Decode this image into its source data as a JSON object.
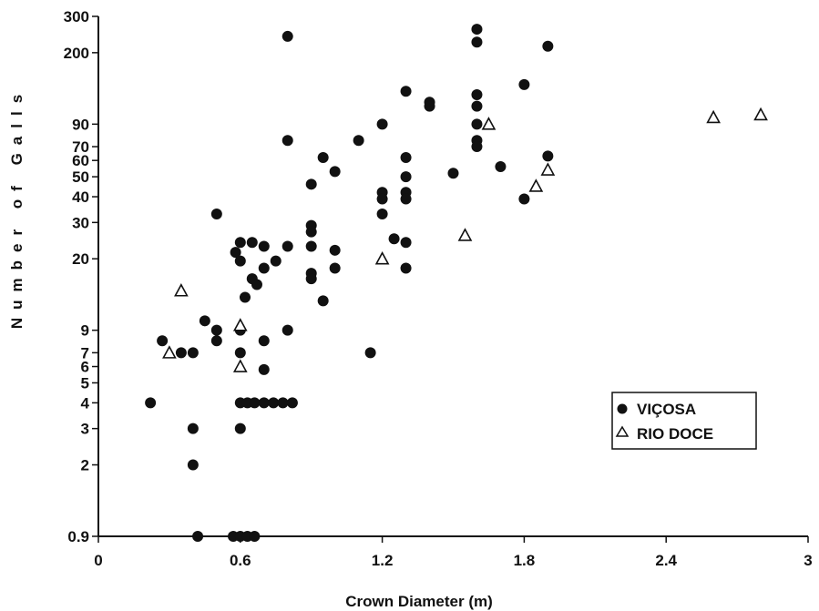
{
  "chart_data": {
    "type": "scatter",
    "title": "",
    "xlabel": "Crown Diameter (m)",
    "ylabel": "Number of Galls",
    "xlim": [
      0,
      3
    ],
    "ylim": [
      0.9,
      300
    ],
    "yscale": "log",
    "xticks": [
      "0",
      "0.6",
      "1.2",
      "1.8",
      "2.4",
      "3"
    ],
    "xtick_values": [
      0,
      0.6,
      1.2,
      1.8,
      2.4,
      3
    ],
    "yticks": [
      "0.9",
      "2",
      "3",
      "4",
      "5",
      "6",
      "7",
      "9",
      "20",
      "30",
      "40",
      "50",
      "60",
      "70",
      "90",
      "200",
      "300"
    ],
    "ytick_values": [
      0.9,
      2,
      3,
      4,
      5,
      6,
      7,
      9,
      20,
      30,
      40,
      50,
      60,
      70,
      90,
      200,
      300
    ],
    "grid": false,
    "legend_position": "bottom-right",
    "series": [
      {
        "name": "VIÇOSA",
        "marker": "filled-circle",
        "color": "#111111",
        "points": [
          [
            0.8,
            240
          ],
          [
            1.6,
            260
          ],
          [
            1.6,
            225
          ],
          [
            1.9,
            215
          ],
          [
            1.3,
            130
          ],
          [
            1.4,
            115
          ],
          [
            1.4,
            110
          ],
          [
            1.6,
            125
          ],
          [
            1.6,
            110
          ],
          [
            1.8,
            140
          ],
          [
            1.2,
            90
          ],
          [
            1.6,
            90
          ],
          [
            0.8,
            75
          ],
          [
            1.1,
            75
          ],
          [
            1.6,
            75
          ],
          [
            1.6,
            70
          ],
          [
            0.95,
            62
          ],
          [
            1.3,
            62
          ],
          [
            1.9,
            63
          ],
          [
            1.7,
            56
          ],
          [
            1.0,
            53
          ],
          [
            1.3,
            50
          ],
          [
            1.5,
            52
          ],
          [
            0.9,
            46
          ],
          [
            1.2,
            42
          ],
          [
            1.2,
            39
          ],
          [
            1.3,
            42
          ],
          [
            1.3,
            39
          ],
          [
            1.8,
            39
          ],
          [
            0.5,
            33
          ],
          [
            1.2,
            33
          ],
          [
            0.9,
            29
          ],
          [
            0.9,
            27
          ],
          [
            1.25,
            25
          ],
          [
            1.3,
            24
          ],
          [
            0.6,
            24
          ],
          [
            0.65,
            24
          ],
          [
            0.7,
            23
          ],
          [
            0.8,
            23
          ],
          [
            0.9,
            23
          ],
          [
            1.0,
            22
          ],
          [
            0.58,
            21.5
          ],
          [
            0.6,
            19.5
          ],
          [
            0.75,
            19.5
          ],
          [
            0.7,
            18
          ],
          [
            1.0,
            18
          ],
          [
            1.3,
            18
          ],
          [
            0.9,
            17
          ],
          [
            0.9,
            16
          ],
          [
            0.65,
            16
          ],
          [
            0.67,
            15
          ],
          [
            0.62,
            13
          ],
          [
            0.95,
            12.5
          ],
          [
            0.45,
            10
          ],
          [
            0.5,
            9
          ],
          [
            0.6,
            9
          ],
          [
            0.8,
            9
          ],
          [
            0.27,
            8
          ],
          [
            0.5,
            8
          ],
          [
            0.7,
            8
          ],
          [
            0.35,
            7
          ],
          [
            0.4,
            7
          ],
          [
            0.6,
            7
          ],
          [
            1.15,
            7
          ],
          [
            0.7,
            5.8
          ],
          [
            0.22,
            4
          ],
          [
            0.6,
            4
          ],
          [
            0.63,
            4
          ],
          [
            0.66,
            4
          ],
          [
            0.7,
            4
          ],
          [
            0.74,
            4
          ],
          [
            0.78,
            4
          ],
          [
            0.82,
            4
          ],
          [
            0.4,
            3
          ],
          [
            0.6,
            3
          ],
          [
            0.4,
            2
          ],
          [
            0.42,
            0.9
          ],
          [
            0.57,
            0.9
          ],
          [
            0.6,
            0.9
          ],
          [
            0.63,
            0.9
          ],
          [
            0.66,
            0.9
          ]
        ]
      },
      {
        "name": "RIO DOCE",
        "marker": "open-triangle",
        "color": "#111111",
        "points": [
          [
            0.35,
            14
          ],
          [
            0.3,
            7
          ],
          [
            0.6,
            9.5
          ],
          [
            0.6,
            6
          ],
          [
            1.2,
            20
          ],
          [
            1.55,
            26
          ],
          [
            1.65,
            90
          ],
          [
            1.85,
            45
          ],
          [
            1.9,
            54
          ],
          [
            2.6,
            97
          ],
          [
            2.8,
            100
          ]
        ]
      }
    ]
  }
}
